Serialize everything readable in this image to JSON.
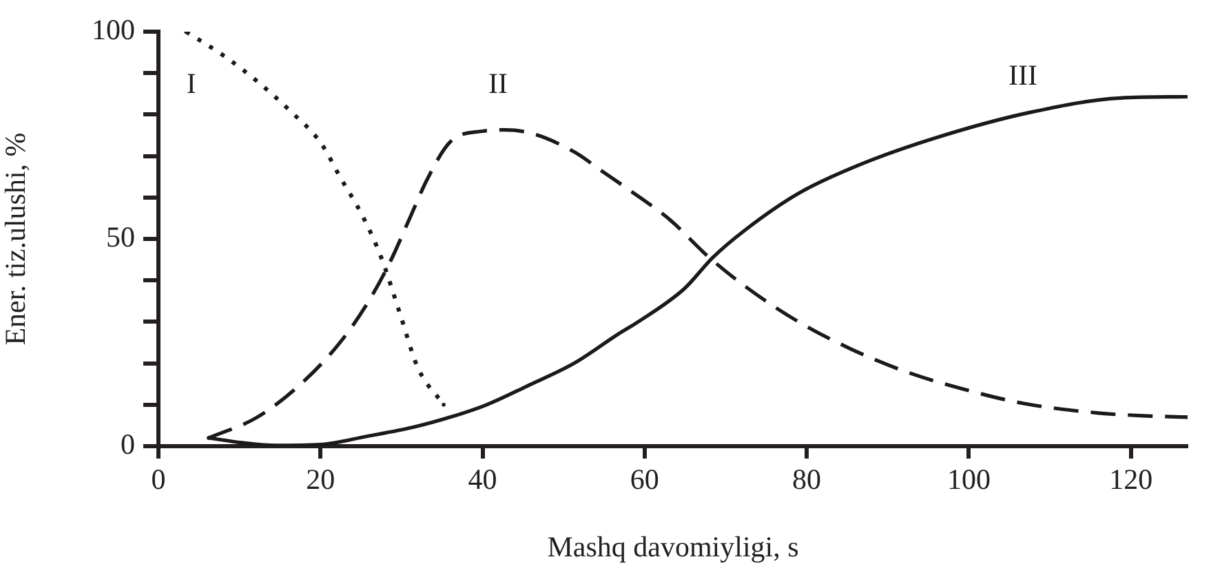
{
  "chart_data": {
    "type": "line",
    "xlabel": "Mashq davomiyligi, s",
    "ylabel": "Ener. tiz.ulushi, %",
    "xlim": [
      0,
      127
    ],
    "ylim": [
      0,
      100
    ],
    "xticks": [
      0,
      20,
      40,
      60,
      80,
      100,
      120
    ],
    "yticks": [
      0,
      {
        "value": 10,
        "label": null
      },
      {
        "value": 20,
        "label": null
      },
      {
        "value": 30,
        "label": null
      },
      {
        "value": 40,
        "label": null
      },
      50,
      {
        "value": 60,
        "label": null
      },
      {
        "value": 70,
        "label": null
      },
      {
        "value": 80,
        "label": null
      },
      {
        "value": 90,
        "label": null
      },
      100
    ],
    "grid": false,
    "legend": false,
    "marker": "none",
    "series": [
      {
        "name": "I",
        "color": "#1a1a1a",
        "line_style": "dotted",
        "x": [
          3.4,
          8.2,
          12.2,
          16.2,
          20.1,
          22.4,
          25.2,
          27.5,
          29.8,
          32,
          35.2
        ],
        "values": [
          100,
          94,
          88,
          81,
          73,
          65,
          55.5,
          45.5,
          32,
          19,
          10
        ]
      },
      {
        "name": "II",
        "color": "#1a1a1a",
        "line_style": "dashed",
        "x": [
          6.2,
          12.2,
          17.9,
          22.4,
          25.8,
          28.6,
          30.9,
          33.2,
          36,
          40,
          42.8,
          46.2,
          51.3,
          55,
          58.7,
          63.2,
          67.7,
          72.8,
          79,
          85.4,
          92.2,
          98.9,
          106.8,
          116,
          122,
          127
        ],
        "values": [
          2,
          7,
          15.6,
          25,
          34.5,
          44.5,
          54.5,
          64.5,
          73.4,
          76,
          76.3,
          75.4,
          71,
          66,
          61,
          54.5,
          46,
          38,
          30,
          23.5,
          18,
          14,
          10.3,
          8,
          7.3,
          7
        ]
      },
      {
        "name": "III",
        "color": "#1a1a1a",
        "line_style": "solid",
        "x": [
          6.2,
          10.5,
          14.5,
          20,
          25.8,
          31.5,
          36,
          40.5,
          45.6,
          51.3,
          56.7,
          59.2,
          64.9,
          68.4,
          72.3,
          79,
          86.4,
          96.1,
          107.5,
          118.7,
          127
        ],
        "values": [
          2,
          0.8,
          0.2,
          0.4,
          2.4,
          4.6,
          7,
          10,
          14.6,
          20,
          27,
          30,
          38,
          45.5,
          52,
          61,
          67.8,
          74.5,
          80.5,
          84,
          84.3
        ]
      }
    ]
  }
}
